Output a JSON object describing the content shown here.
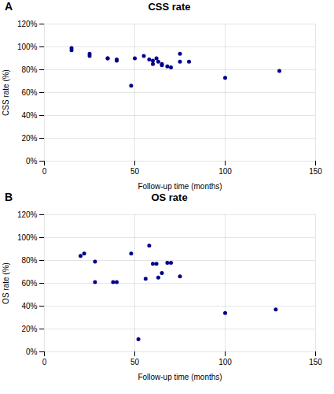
{
  "chart_data": [
    {
      "type": "scatter",
      "title": "CSS rate",
      "annotation": "A",
      "x_label": "Follow-up time (months)",
      "y_label": "CSS rate (%)",
      "x": [
        15,
        15,
        25,
        25,
        35,
        35,
        40,
        40,
        48,
        50,
        55,
        58,
        60,
        60,
        62,
        63,
        65,
        65,
        68,
        70,
        75,
        75,
        80,
        100,
        130
      ],
      "values": [
        0.99,
        0.97,
        0.94,
        0.92,
        0.9,
        0.9,
        0.89,
        0.88,
        0.66,
        0.9,
        0.92,
        0.89,
        0.85,
        0.88,
        0.9,
        0.87,
        0.85,
        0.84,
        0.83,
        0.82,
        0.94,
        0.87,
        0.87,
        0.73,
        0.79
      ],
      "color": "#00008B",
      "xlim": [
        0,
        150
      ],
      "xticks": [
        0,
        50,
        100,
        150
      ],
      "ylim": [
        0.0,
        1.2
      ],
      "yticks": [
        {
          "value": 0.0,
          "label": "0%"
        },
        {
          "value": 0.2,
          "label": "20%"
        },
        {
          "value": 0.4,
          "label": "40%"
        },
        {
          "value": 0.6,
          "label": "60%"
        },
        {
          "value": 0.8,
          "label": "80%"
        },
        {
          "value": 1.0,
          "label": "100%"
        },
        {
          "value": 1.2,
          "label": "120%"
        }
      ],
      "grid": true
    },
    {
      "type": "scatter",
      "title": "OS rate",
      "annotation": "B",
      "x_label": "Follow-up time (months)",
      "y_label": "OS rate (%)",
      "x": [
        20,
        22,
        28,
        28,
        38,
        40,
        48,
        52,
        56,
        58,
        60,
        62,
        63,
        65,
        68,
        70,
        75,
        100,
        128
      ],
      "values": [
        0.84,
        0.86,
        0.79,
        0.61,
        0.61,
        0.61,
        0.86,
        0.11,
        0.64,
        0.93,
        0.77,
        0.77,
        0.65,
        0.69,
        0.78,
        0.78,
        0.66,
        0.34,
        0.37
      ],
      "color": "#00008B",
      "xlim": [
        0,
        150
      ],
      "xticks": [
        0,
        50,
        100,
        150
      ],
      "ylim": [
        0.0,
        1.2
      ],
      "yticks": [
        {
          "value": 0.0,
          "label": "0%"
        },
        {
          "value": 0.2,
          "label": "20%"
        },
        {
          "value": 0.4,
          "label": "40%"
        },
        {
          "value": 0.6,
          "label": "60%"
        },
        {
          "value": 0.8,
          "label": "80%"
        },
        {
          "value": 1.0,
          "label": "100%"
        },
        {
          "value": 1.2,
          "label": "120%"
        }
      ],
      "grid": true
    }
  ]
}
